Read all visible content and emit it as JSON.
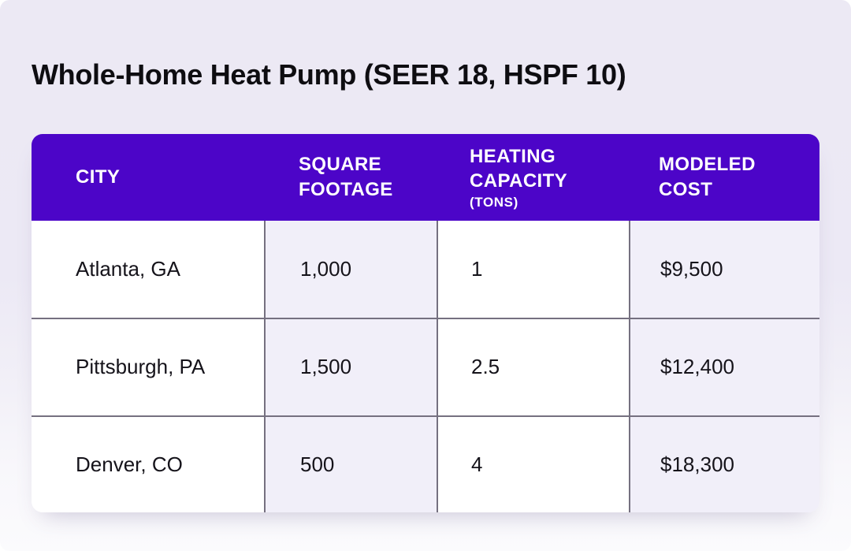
{
  "title": "Whole-Home Heat Pump (SEER 18, HSPF 10)",
  "chart_data": {
    "type": "table",
    "title": "Whole-Home Heat Pump (SEER 18, HSPF 10)",
    "columns": [
      "CITY",
      "SQUARE FOOTAGE",
      "HEATING CAPACITY (TONS)",
      "MODELED COST"
    ],
    "rows": [
      [
        "Atlanta, GA",
        "1,000",
        "1",
        "$9,500"
      ],
      [
        "Pittsburgh, PA",
        "1,500",
        "2.5",
        "$12,400"
      ],
      [
        "Denver, CO",
        "500",
        "4",
        "$18,300"
      ]
    ]
  },
  "table": {
    "header": {
      "city": "CITY",
      "square_footage": "SQUARE\nFOOTAGE",
      "heating_capacity": "HEATING\nCAPACITY",
      "heating_capacity_unit": "(TONS)",
      "modeled_cost": "MODELED\nCOST"
    },
    "rows": [
      {
        "city": "Atlanta, GA",
        "square_footage": "1,000",
        "heating_capacity_tons": "1",
        "modeled_cost": "$9,500"
      },
      {
        "city": "Pittsburgh, PA",
        "square_footage": "1,500",
        "heating_capacity_tons": "2.5",
        "modeled_cost": "$12,400"
      },
      {
        "city": "Denver, CO",
        "square_footage": "500",
        "heating_capacity_tons": "4",
        "modeled_cost": "$18,300"
      }
    ]
  },
  "colors": {
    "header_bg": "#4c05c8",
    "header_text": "#ffffff",
    "alt_column_bg": "#f1eff9",
    "row_bg": "#ffffff",
    "border": "#757080",
    "page_bg_top": "#ece9f5",
    "page_bg_bottom": "#fbfbfd",
    "title_text": "#0e0d11",
    "body_text": "#15131a"
  }
}
